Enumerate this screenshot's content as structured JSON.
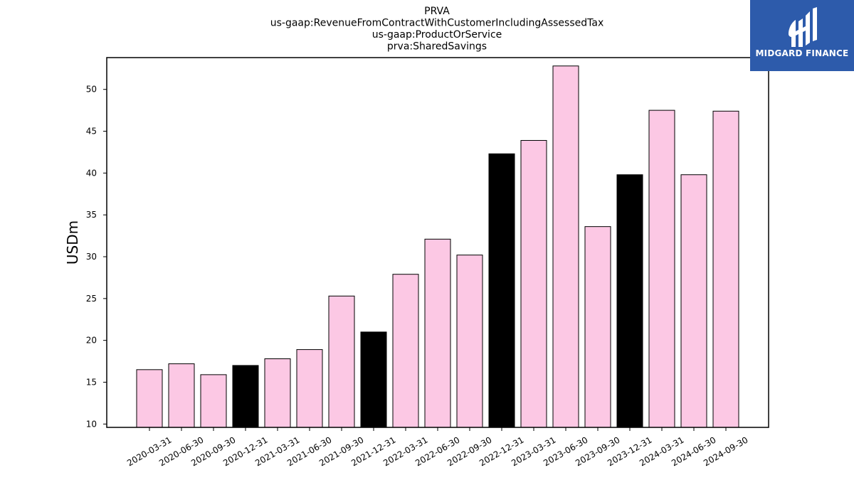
{
  "chart_data": {
    "type": "bar",
    "title_lines": [
      "PRVA",
      "us-gaap:RevenueFromContractWithCustomerIncludingAssessedTax",
      "us-gaap:ProductOrService",
      "prva:SharedSavings"
    ],
    "xlabel": "",
    "ylabel": "USDm",
    "ylim": [
      9.6,
      53.8
    ],
    "yticks": [
      10,
      15,
      20,
      25,
      30,
      35,
      40,
      45,
      50
    ],
    "grid": false,
    "categories": [
      "2020-03-31",
      "2020-06-30",
      "2020-09-30",
      "2020-12-31",
      "2021-03-31",
      "2021-06-30",
      "2021-09-30",
      "2021-12-31",
      "2022-03-31",
      "2022-06-30",
      "2022-09-30",
      "2022-12-31",
      "2023-03-31",
      "2023-06-30",
      "2023-09-30",
      "2023-12-31",
      "2024-03-31",
      "2024-06-30",
      "2024-09-30"
    ],
    "values": [
      16.5,
      17.2,
      15.9,
      17.0,
      17.8,
      18.9,
      25.3,
      21.0,
      27.9,
      32.1,
      30.2,
      42.3,
      43.9,
      52.8,
      33.6,
      39.8,
      47.5,
      39.8,
      47.4
    ],
    "bar_colors": [
      "#fcc8e4",
      "#fcc8e4",
      "#fcc8e4",
      "#000000",
      "#fcc8e4",
      "#fcc8e4",
      "#fcc8e4",
      "#000000",
      "#fcc8e4",
      "#fcc8e4",
      "#fcc8e4",
      "#000000",
      "#fcc8e4",
      "#fcc8e4",
      "#fcc8e4",
      "#000000",
      "#fcc8e4",
      "#fcc8e4",
      "#fcc8e4"
    ]
  },
  "logo": {
    "text": "MIDGARD FINANCE",
    "background": "#2d5bab"
  }
}
